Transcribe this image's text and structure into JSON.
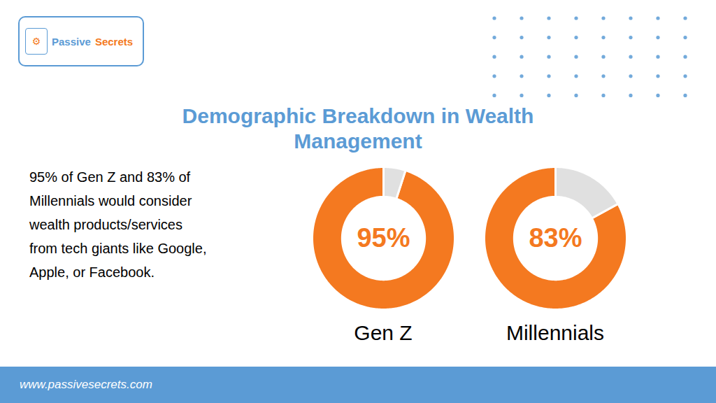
{
  "title": "Demographic Breakdown in Wealth\nManagement",
  "color": "#5b9bd5",
  "annotations": [
    "95% of Gen Z and 83% of",
    "Millennials would consider",
    "wealth products/services",
    "from tech giants like Google,",
    "Apple, or Facebook."
  ],
  "caption": "www.passivesecrets.com",
  "logo": [
    {
      "text": "⚙",
      "color": "#f47920"
    },
    {
      "text": "Passive",
      "color": "#5b9bd5"
    },
    {
      "text": "Secrets",
      "color": "#f47920"
    }
  ],
  "chart_data": [
    {
      "type": "donut",
      "title": "Gen Z",
      "values": [
        95,
        5
      ],
      "value_labels": [
        "95%",
        null
      ],
      "colors": [
        "#f47920",
        "#e0e0e0"
      ]
    },
    {
      "type": "donut",
      "title": "Millennials",
      "values": [
        83,
        17
      ],
      "value_labels": [
        "83%",
        null
      ],
      "colors": [
        "#f47920",
        "#e0e0e0"
      ]
    }
  ]
}
